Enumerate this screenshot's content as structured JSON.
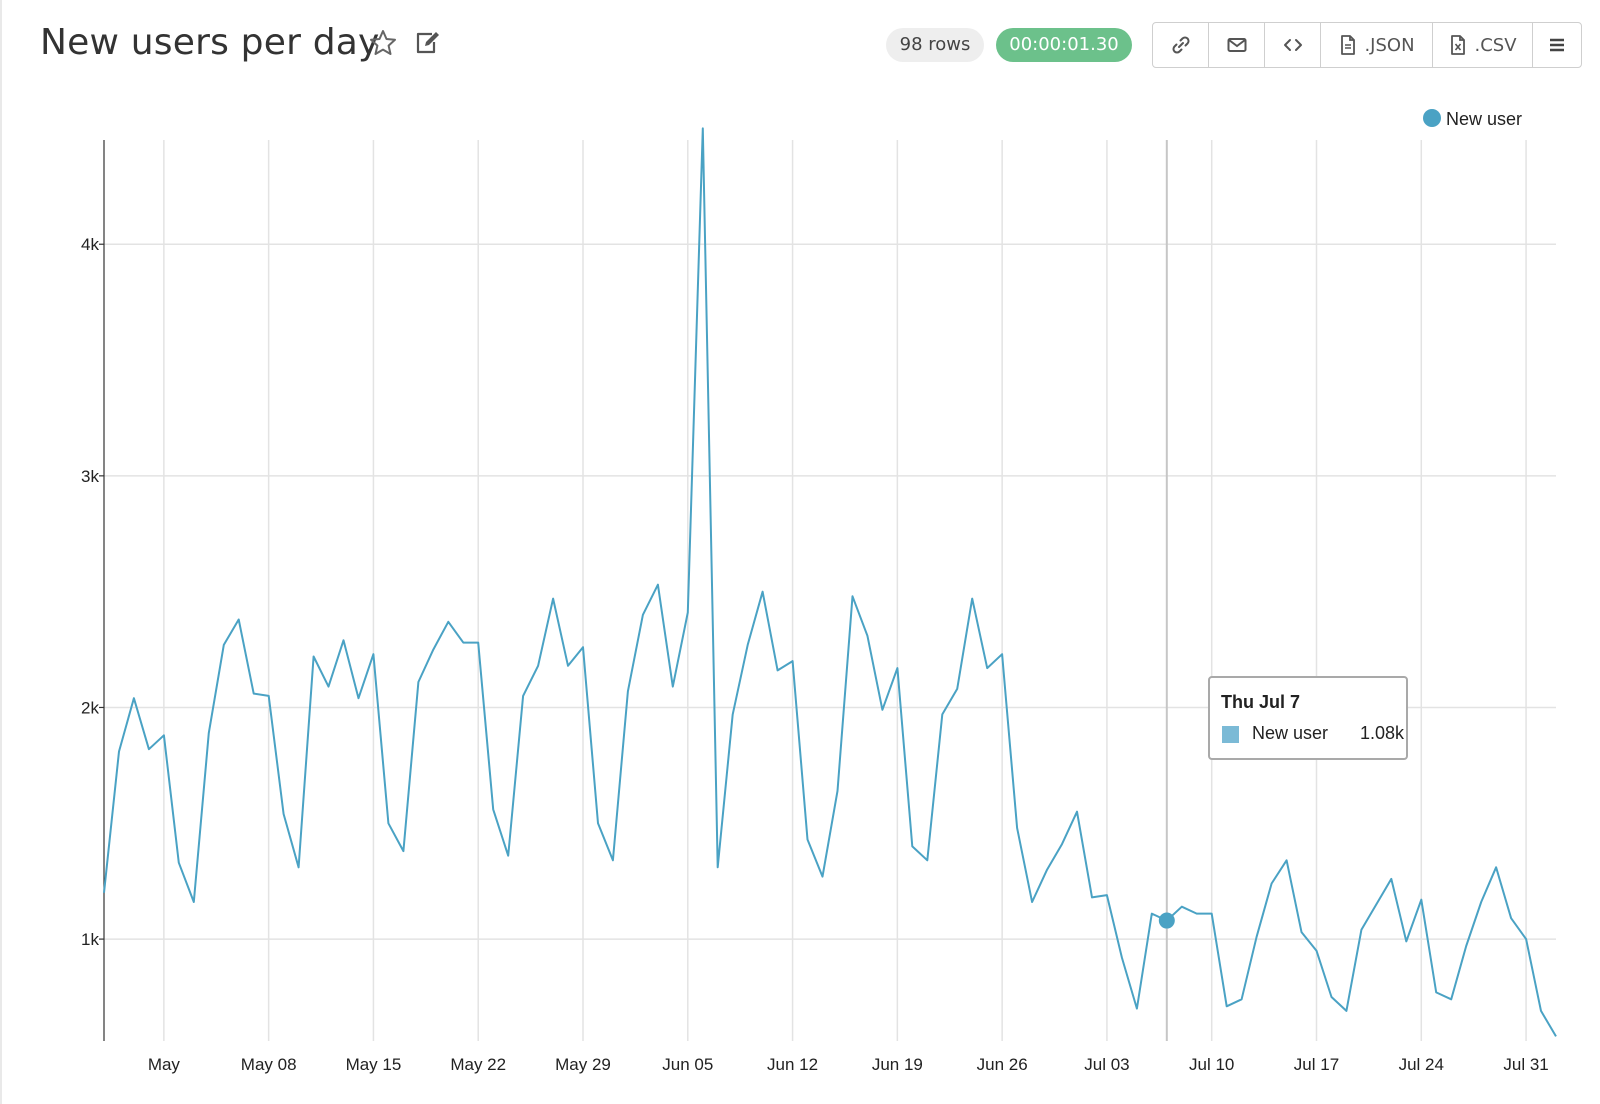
{
  "header": {
    "title": "New users per day",
    "favorite_icon": "star-icon",
    "edit_icon": "edit-icon",
    "rows_badge": "98 rows",
    "time_badge": "00:00:01.30"
  },
  "toolbar": {
    "link_icon": "link-icon",
    "email_icon": "envelope-icon",
    "embed_icon": "code-icon",
    "json_label": ".JSON",
    "csv_label": ".CSV",
    "menu_icon": "hamburger-menu-icon"
  },
  "tooltip": {
    "title": "Thu Jul 7",
    "series": "New user",
    "value": "1.08k"
  },
  "colors": {
    "line": "#4aa2c4",
    "legend_dot": "#4aa2c4",
    "tooltip_swatch": "#7bbad6",
    "time_badge": "#6cc18b"
  },
  "chart_data": {
    "type": "line",
    "xlabel": "",
    "ylabel": "",
    "ylim": [
      560,
      4450
    ],
    "grid": true,
    "legend_position": "top-right",
    "y_ticks": [
      1000,
      2000,
      3000,
      4000
    ],
    "y_tick_labels": [
      "1k",
      "2k",
      "3k",
      "4k"
    ],
    "x_ticks": [
      "2022-05-01",
      "2022-05-08",
      "2022-05-15",
      "2022-05-22",
      "2022-05-29",
      "2022-06-05",
      "2022-06-12",
      "2022-06-19",
      "2022-06-26",
      "2022-07-03",
      "2022-07-10",
      "2022-07-17",
      "2022-07-24",
      "2022-07-31"
    ],
    "x_tick_labels": [
      "May",
      "May 08",
      "May 15",
      "May 22",
      "May 29",
      "Jun 05",
      "Jun 12",
      "Jun 19",
      "Jun 26",
      "Jul 03",
      "Jul 10",
      "Jul 17",
      "Jul 24",
      "Jul 31"
    ],
    "highlight_date": "2022-07-07",
    "series": [
      {
        "name": "New user",
        "x": [
          "2022-04-27",
          "2022-04-28",
          "2022-04-29",
          "2022-04-30",
          "2022-05-01",
          "2022-05-02",
          "2022-05-03",
          "2022-05-04",
          "2022-05-05",
          "2022-05-06",
          "2022-05-07",
          "2022-05-08",
          "2022-05-09",
          "2022-05-10",
          "2022-05-11",
          "2022-05-12",
          "2022-05-13",
          "2022-05-14",
          "2022-05-15",
          "2022-05-16",
          "2022-05-17",
          "2022-05-18",
          "2022-05-19",
          "2022-05-20",
          "2022-05-21",
          "2022-05-22",
          "2022-05-23",
          "2022-05-24",
          "2022-05-25",
          "2022-05-26",
          "2022-05-27",
          "2022-05-28",
          "2022-05-29",
          "2022-05-30",
          "2022-05-31",
          "2022-06-01",
          "2022-06-02",
          "2022-06-03",
          "2022-06-04",
          "2022-06-05",
          "2022-06-06",
          "2022-06-07",
          "2022-06-08",
          "2022-06-09",
          "2022-06-10",
          "2022-06-11",
          "2022-06-12",
          "2022-06-13",
          "2022-06-14",
          "2022-06-15",
          "2022-06-16",
          "2022-06-17",
          "2022-06-18",
          "2022-06-19",
          "2022-06-20",
          "2022-06-21",
          "2022-06-22",
          "2022-06-23",
          "2022-06-24",
          "2022-06-25",
          "2022-06-26",
          "2022-06-27",
          "2022-06-28",
          "2022-06-29",
          "2022-06-30",
          "2022-07-01",
          "2022-07-02",
          "2022-07-03",
          "2022-07-04",
          "2022-07-05",
          "2022-07-06",
          "2022-07-07",
          "2022-07-08",
          "2022-07-09",
          "2022-07-10",
          "2022-07-11",
          "2022-07-12",
          "2022-07-13",
          "2022-07-14",
          "2022-07-15",
          "2022-07-16",
          "2022-07-17",
          "2022-07-18",
          "2022-07-19",
          "2022-07-20",
          "2022-07-21",
          "2022-07-22",
          "2022-07-23",
          "2022-07-24",
          "2022-07-25",
          "2022-07-26",
          "2022-07-27",
          "2022-07-28",
          "2022-07-29",
          "2022-07-30",
          "2022-07-31",
          "2022-08-01",
          "2022-08-02"
        ],
        "y": [
          1200,
          1810,
          2040,
          1820,
          1880,
          1330,
          1160,
          1890,
          2270,
          2380,
          2060,
          2050,
          1540,
          1310,
          2220,
          2090,
          2290,
          2040,
          2230,
          1500,
          1380,
          2110,
          2250,
          2370,
          2280,
          2280,
          1560,
          1360,
          2050,
          2180,
          2470,
          2180,
          2260,
          1500,
          1340,
          2070,
          2400,
          2530,
          2090,
          2410,
          4500,
          1310,
          1970,
          2270,
          2500,
          2160,
          2200,
          1430,
          1270,
          1640,
          2480,
          2310,
          1990,
          2170,
          1400,
          1340,
          1970,
          2080,
          2470,
          2170,
          2230,
          1480,
          1160,
          1300,
          1410,
          1550,
          1180,
          1190,
          920,
          700,
          1110,
          1080,
          1140,
          1110,
          1110,
          710,
          740,
          1010,
          1240,
          1340,
          1030,
          950,
          750,
          690,
          1040,
          1150,
          1260,
          990,
          1170,
          770,
          740,
          970,
          1160,
          1310,
          1090,
          1000,
          690,
          580
        ]
      }
    ]
  }
}
